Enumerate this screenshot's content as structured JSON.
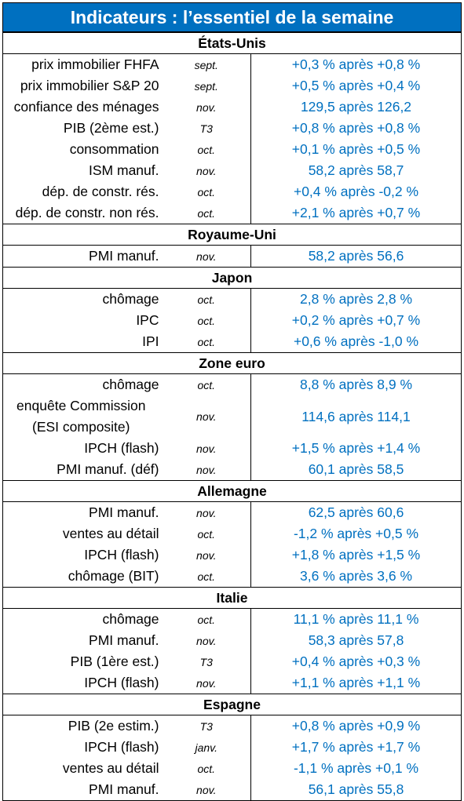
{
  "title": "Indicateurs : l’essentiel de la semaine",
  "sections": [
    {
      "name": "États-Unis",
      "rows": [
        {
          "label": "prix immobilier FHFA",
          "period": "sept.",
          "value": "+0,3 % après +0,8 %"
        },
        {
          "label": "prix immobilier S&P 20",
          "period": "sept.",
          "value": "+0,5 % après +0,4 %"
        },
        {
          "label": "confiance des ménages",
          "period": "nov.",
          "value": "129,5 après 126,2"
        },
        {
          "label": "PIB (2ème est.)",
          "period": "T3",
          "value": "+0,8 % après +0,8 %"
        },
        {
          "label": "consommation",
          "period": "oct.",
          "value": "+0,1 % après +0,5 %"
        },
        {
          "label": "ISM manuf.",
          "period": "nov.",
          "value": "58,2 après 58,7"
        },
        {
          "label": "dép. de constr. rés.",
          "period": "oct.",
          "value": "+0,4 % après -0,2 %"
        },
        {
          "label": "dép. de constr. non rés.",
          "period": "oct.",
          "value": "+2,1 % après +0,7 %"
        }
      ]
    },
    {
      "name": "Royaume-Uni",
      "rows": [
        {
          "label": "PMI manuf.",
          "period": "nov.",
          "value": "58,2 après 56,6"
        }
      ]
    },
    {
      "name": "Japon",
      "rows": [
        {
          "label": "chômage",
          "period": "oct.",
          "value": "2,8 % après 2,8 %"
        },
        {
          "label": "IPC",
          "period": "oct.",
          "value": "+0,2 % après +0,7 %"
        },
        {
          "label": "IPI",
          "period": "oct.",
          "value": "+0,6 % après -1,0 %"
        }
      ]
    },
    {
      "name": "Zone euro",
      "rows": [
        {
          "label": "chômage",
          "period": "oct.",
          "value": "8,8 % après 8,9 %"
        },
        {
          "label": "enquête Commission",
          "label2": "(ESI composite)",
          "period": "nov.",
          "value": "114,6 après 114,1"
        },
        {
          "label": "IPCH (flash)",
          "period": "nov.",
          "value": "+1,5 % après +1,4 %"
        },
        {
          "label": "PMI manuf. (déf)",
          "period": "nov.",
          "value": "60,1 après 58,5"
        }
      ]
    },
    {
      "name": "Allemagne",
      "rows": [
        {
          "label": "PMI manuf.",
          "period": "nov.",
          "value": "62,5 après 60,6"
        },
        {
          "label": "ventes au détail",
          "period": "oct.",
          "value": "-1,2 % après +0,5 %"
        },
        {
          "label": "IPCH (flash)",
          "period": "nov.",
          "value": "+1,8 % après +1,5 %"
        },
        {
          "label": "chômage (BIT)",
          "period": "oct.",
          "value": "3,6 % après 3,6 %"
        }
      ]
    },
    {
      "name": "Italie",
      "rows": [
        {
          "label": "chômage",
          "period": "oct.",
          "value": "11,1 % après 11,1 %"
        },
        {
          "label": "PMI manuf.",
          "period": "nov.",
          "value": "58,3 après 57,8"
        },
        {
          "label": "PIB (1ère est.)",
          "period": "T3",
          "value": "+0,4 % après +0,3 %"
        },
        {
          "label": "IPCH (flash)",
          "period": "nov.",
          "value": "+1,1 % après +1,1 %"
        }
      ]
    },
    {
      "name": "Espagne",
      "rows": [
        {
          "label": "PIB (2e estim.)",
          "period": "T3",
          "value": "+0,8 % après +0,9 %"
        },
        {
          "label": "IPCH (flash)",
          "period": "janv.",
          "value": "+1,7 % après +1,7 %"
        },
        {
          "label": "ventes au détail",
          "period": "oct.",
          "value": "-1,1 % après +0,1 %"
        },
        {
          "label": "PMI manuf.",
          "period": "nov.",
          "value": "56,1 après 55,8"
        }
      ]
    }
  ]
}
